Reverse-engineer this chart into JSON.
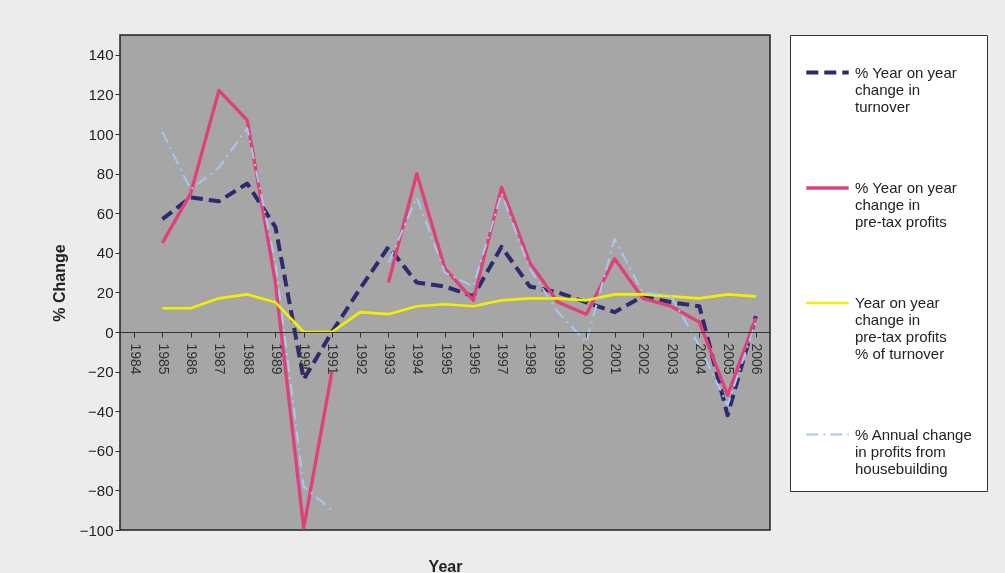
{
  "chart_data": {
    "type": "line",
    "xlabel": "Year",
    "ylabel": "% Change",
    "categories": [
      "1984",
      "1985",
      "1986",
      "1987",
      "1988",
      "1989",
      "1990",
      "1991",
      "1992",
      "1993",
      "1994",
      "1995",
      "1996",
      "1997",
      "1998",
      "1999",
      "2000",
      "2001",
      "2002",
      "2003",
      "2004",
      "2005",
      "2006"
    ],
    "series": [
      {
        "name": "% Year on year change in turnover",
        "color": "#2e2a6e",
        "line_style": "dashed",
        "values": [
          null,
          57,
          68,
          66,
          75,
          53,
          -24,
          0,
          22,
          43,
          25,
          23,
          18,
          43,
          23,
          20,
          15,
          10,
          18,
          15,
          13,
          -42,
          8
        ]
      },
      {
        "name": "% Year on year change in pre-tax profits",
        "color": "#e0407a",
        "line_style": "solid",
        "values": [
          null,
          45,
          70,
          122,
          107,
          25,
          -99,
          -20,
          null,
          25,
          80,
          32,
          16,
          73,
          35,
          15,
          9,
          37,
          17,
          13,
          5,
          -32,
          7
        ]
      },
      {
        "name": "Year on year change in pre-tax profits % of turnover",
        "color": "#f2f000",
        "line_style": "solid",
        "values": [
          null,
          12,
          12,
          17,
          19,
          15,
          0,
          0,
          10,
          9,
          13,
          14,
          13,
          16,
          17,
          17,
          16,
          19,
          19,
          18,
          17,
          19,
          18
        ]
      },
      {
        "name": "% Annual change in profits from housebuilding",
        "color": "#a8c8f0",
        "line_style": "dashdot",
        "values": [
          null,
          101,
          72,
          83,
          103,
          35,
          -78,
          -90,
          null,
          35,
          68,
          30,
          23,
          70,
          32,
          10,
          -5,
          47,
          20,
          18,
          -7,
          -37,
          5
        ]
      }
    ],
    "ylim": [
      -100,
      150
    ],
    "yticks": [
      -100,
      -80,
      -60,
      -40,
      -20,
      0,
      20,
      40,
      60,
      80,
      100,
      120,
      140
    ],
    "grid": false,
    "legend": "right",
    "marker": "none"
  }
}
